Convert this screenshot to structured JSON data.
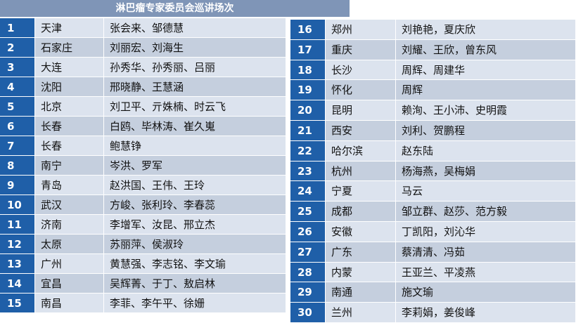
{
  "header": {
    "title": "淋巴瘤专家委员会巡讲场次"
  },
  "table": {
    "rows": [
      [
        1,
        "天津",
        "张会来、邹德慧"
      ],
      [
        2,
        "石家庄",
        "刘丽宏、刘海生"
      ],
      [
        3,
        "大连",
        "孙秀华、孙秀丽、吕丽"
      ],
      [
        4,
        "沈阳",
        "邢晓静、王慧涵"
      ],
      [
        5,
        "北京",
        "刘卫平、亓姝楠、时云飞"
      ],
      [
        6,
        "长春",
        "白鸥、毕林涛、崔久嵬"
      ],
      [
        7,
        "长春",
        "鲍慧铮"
      ],
      [
        8,
        "南宁",
        "岑洪、罗军"
      ],
      [
        9,
        "青岛",
        "赵洪国、王伟、王玲"
      ],
      [
        10,
        "武汉",
        "方峻、张利玲、李春蕊"
      ],
      [
        11,
        "济南",
        "李增军、汝昆、邢立杰"
      ],
      [
        12,
        "太原",
        "苏丽萍、侯淑玲"
      ],
      [
        13,
        "广州",
        "黄慧强、李志铭、李文瑜"
      ],
      [
        14,
        "宜昌",
        "吴辉菁、于丁、敖启林"
      ],
      [
        15,
        "南昌",
        "李菲、李午平、徐姗"
      ],
      [
        16,
        "郑州",
        "刘艳艳，夏庆欣"
      ],
      [
        17,
        "重庆",
        "刘耀、王欣，曾东风"
      ],
      [
        18,
        "长沙",
        "周辉、周建华"
      ],
      [
        19,
        "怀化",
        "周辉"
      ],
      [
        20,
        "昆明",
        "赖洵、王小沛、史明霞"
      ],
      [
        21,
        "西安",
        "刘利、贺鹏程"
      ],
      [
        22,
        "哈尔滨",
        "赵东陆"
      ],
      [
        23,
        "杭州",
        "杨海燕，吴梅娟"
      ],
      [
        24,
        "宁夏",
        "马云"
      ],
      [
        25,
        "成都",
        "邹立群、赵莎、范方毅"
      ],
      [
        26,
        "安徽",
        "丁凯阳，刘沁华"
      ],
      [
        27,
        "广东",
        "蔡清清、冯茹"
      ],
      [
        28,
        "内蒙",
        "王亚兰、平凌燕"
      ],
      [
        29,
        "南通",
        "施文瑜"
      ],
      [
        30,
        "兰州",
        "李莉娟，姜俊峰"
      ]
    ]
  }
}
